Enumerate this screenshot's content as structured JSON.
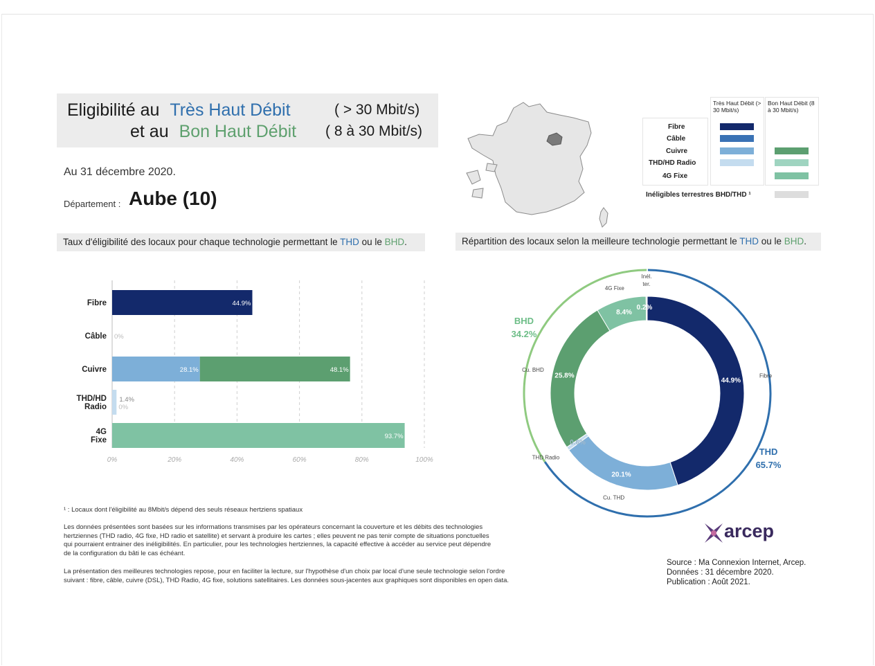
{
  "title": {
    "line1_prefix": "Eligibilité au",
    "line1_highlight": "Très Haut Débit",
    "line1_range": "( > 30 Mbit/s)",
    "line2_prefix": "et au",
    "line2_highlight": "Bon Haut Débit",
    "line2_range": "( 8 à 30 Mbit/s)"
  },
  "date": "Au 31 décembre 2020.",
  "departement": {
    "label": "Département :",
    "value": "Aube (10)"
  },
  "legend": {
    "thd_header": "Très Haut Débit (> 30 Mbit/s)",
    "bhd_header": "Bon Haut Débit (8 à 30 Mbit/s)",
    "rows": [
      "Fibre",
      "Câble",
      "Cuivre",
      "THD/HD Radio",
      "4G Fixe"
    ],
    "ineligible": "Inéligibles terrestres BHD/THD ¹"
  },
  "left_section": {
    "text": "Taux d'éligibilité des locaux pour chaque technologie permettant le ",
    "thd": "THD",
    "mid": " ou le ",
    "bhd": "BHD",
    "end": "."
  },
  "right_section": {
    "text": "Répartition des locaux selon la meilleure technologie permettant le ",
    "thd": "THD",
    "mid": " ou le ",
    "bhd": "BHD",
    "end": "."
  },
  "colors": {
    "fibre": "#13296b",
    "cable": "#3a72b5",
    "cuivre_thd": "#7dafd8",
    "radio_thd": "#c4dcef",
    "cuivre_bhd": "#5c9f70",
    "radio_bhd": "#9fd4c0",
    "fixe_4g": "#7fc2a3",
    "ineligible": "#dddddd",
    "thd_ring": "#2f6fad",
    "bhd_ring": "#8fca80"
  },
  "chart_data": [
    {
      "type": "bar",
      "orientation": "horizontal",
      "stacked": true,
      "categories": [
        "Fibre",
        "Câble",
        "Cuivre",
        "THD/HD Radio",
        "4G Fixe"
      ],
      "category_lines": [
        [
          "Fibre"
        ],
        [
          "Câble"
        ],
        [
          "Cuivre"
        ],
        [
          "THD/HD",
          "Radio"
        ],
        [
          "4G",
          "Fixe"
        ]
      ],
      "series": [
        {
          "name": "THD",
          "values": [
            44.9,
            0,
            28.1,
            1.4,
            0
          ],
          "labels": [
            "44.9%",
            "0%",
            "28.1%",
            "1.4%",
            ""
          ]
        },
        {
          "name": "BHD",
          "values": [
            0,
            0,
            48.1,
            0,
            93.7
          ],
          "labels": [
            "",
            "",
            "48.1%",
            "0%",
            "93.7%"
          ]
        }
      ],
      "xlim": [
        0,
        100
      ],
      "xticks": [
        0,
        20,
        40,
        60,
        80,
        100
      ],
      "xtick_labels": [
        "0%",
        "20%",
        "40%",
        "60%",
        "80%",
        "100%"
      ],
      "grid": true
    },
    {
      "type": "pie",
      "donut": true,
      "slices": [
        {
          "label": "Fibre",
          "value": 44.9,
          "pct_label": "44.9%"
        },
        {
          "label": "Cu. THD",
          "value": 20.1,
          "pct_label": "20.1%"
        },
        {
          "label": "THD Radio",
          "value": 0.6,
          "pct_label": "0.6%"
        },
        {
          "label": "Cu. BHD",
          "value": 25.8,
          "pct_label": "25.8%"
        },
        {
          "label": "4G Fixe",
          "value": 8.4,
          "pct_label": "8.4%"
        },
        {
          "label": "Inél. ter.",
          "value": 0.2,
          "pct_label": "0.2%"
        }
      ],
      "outer_rings": [
        {
          "label": "THD",
          "value": "65.7%"
        },
        {
          "label": "BHD",
          "value": "34.2%"
        }
      ]
    }
  ],
  "footnotes": {
    "note1": "¹ : Locaux dont l'éligibilité au 8Mbit/s dépend des seuls réseaux hertziens spatiaux",
    "para1": [
      "Les données présentées sont basées sur les informations transmises par les opérateurs concernant la couverture et les débits des technologies",
      "hertziennes (THD radio, 4G fixe, HD radio et satellite) et servant à produire les cartes ; elles peuvent ne pas tenir compte de situations ponctuelles",
      "qui pourraient entrainer des inéligibilités. En particulier, pour les technologies hertziennes, la capacité effective à accéder au service peut dépendre",
      "de la configuration du bâti le cas échéant."
    ],
    "para2": [
      "La présentation des meilleures technologies repose, pour en faciliter la lecture, sur l'hypothèse d'un choix par local d'une seule technologie selon l'ordre",
      "suivant : fibre, câble, cuivre (DSL), THD Radio, 4G fixe, solutions satellitaires. Les données sous-jacentes aux graphiques sont disponibles en open data."
    ]
  },
  "source": [
    "Source : Ma Connexion Internet, Arcep.",
    "Données : 31 décembre 2020.",
    "Publication : Août 2021."
  ],
  "logo_text": "arcep"
}
